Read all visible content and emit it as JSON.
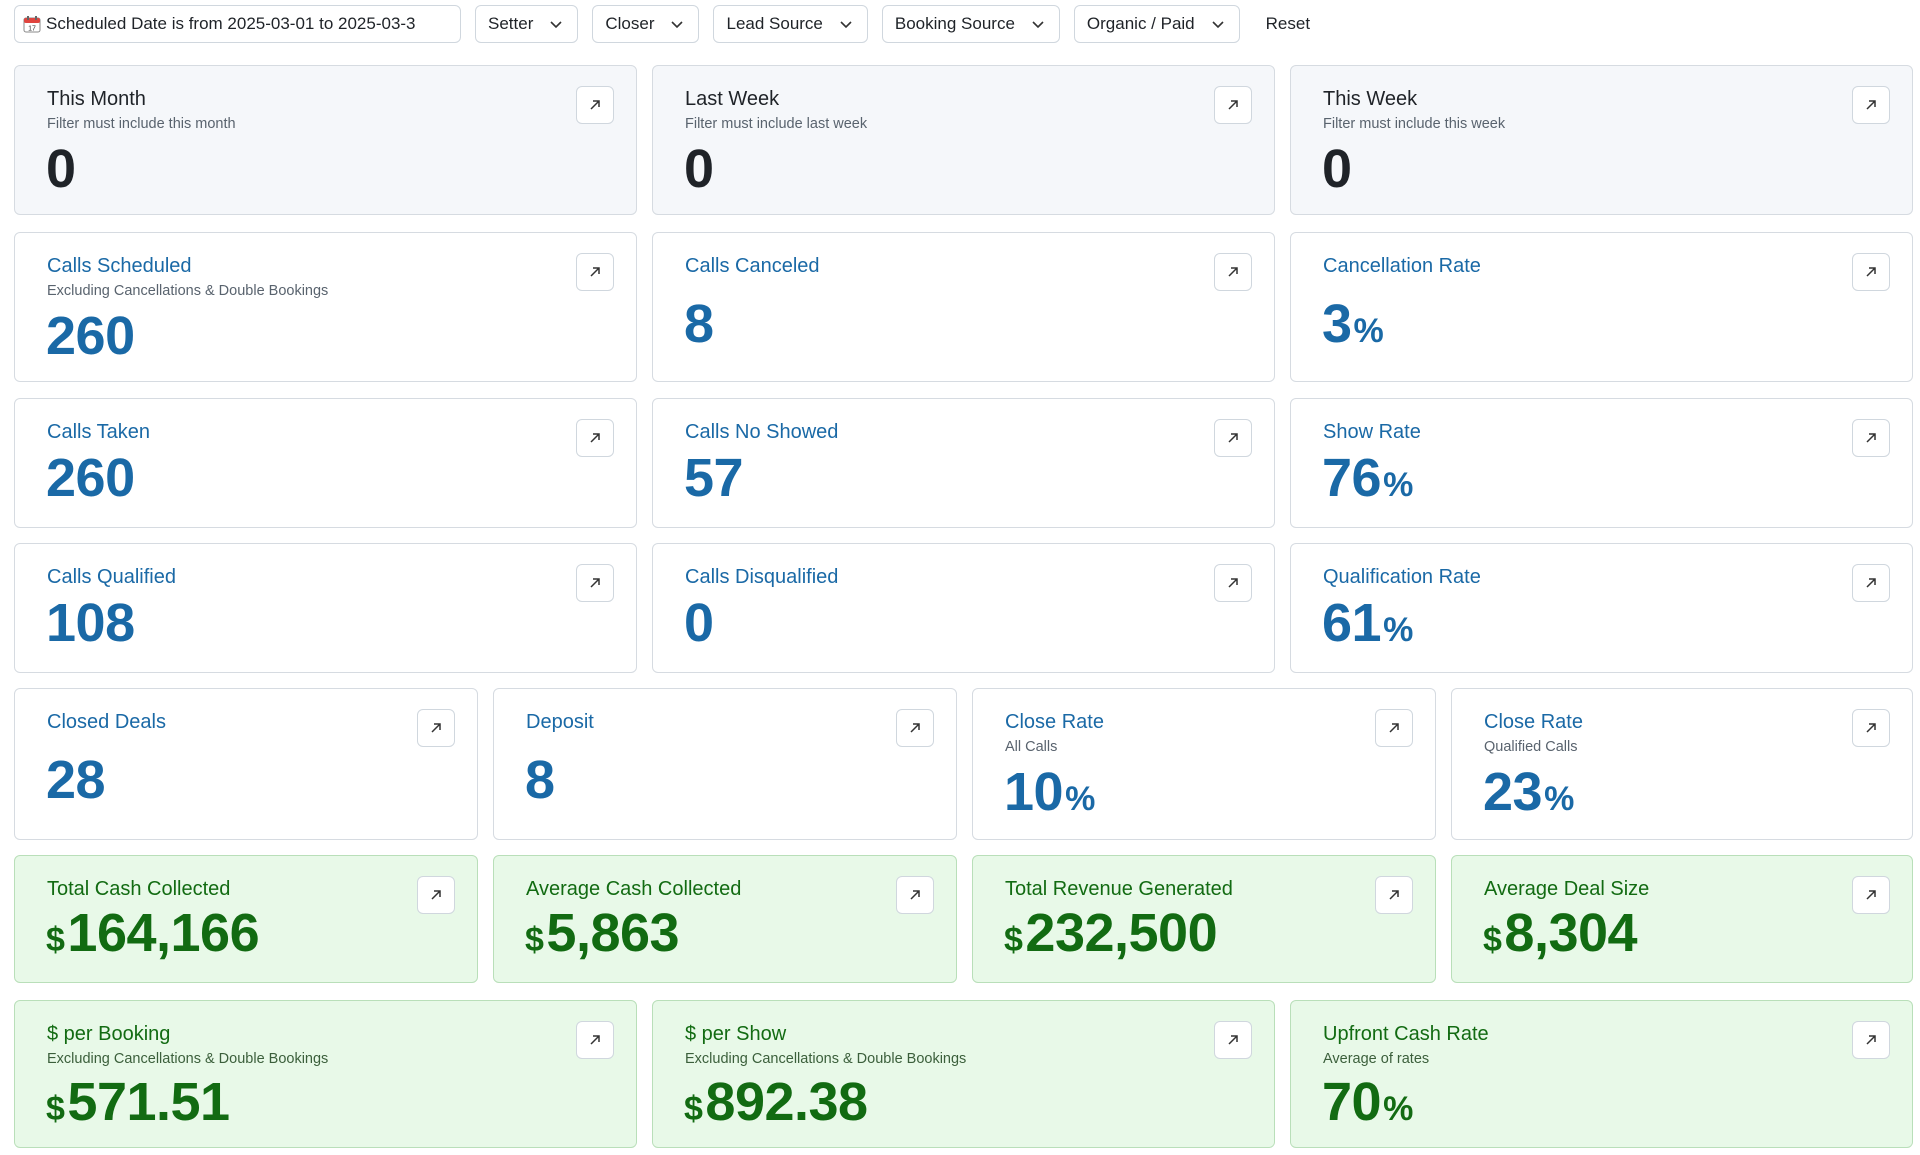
{
  "filters": {
    "date_range": "Scheduled Date is from 2025-03-01 to 2025-03-3",
    "setter": "Setter",
    "closer": "Closer",
    "lead_source": "Lead Source",
    "booking_source": "Booking Source",
    "organic_paid": "Organic / Paid",
    "reset": "Reset"
  },
  "cards": {
    "this_month": {
      "title": "This Month",
      "subtitle": "Filter must include this month",
      "value": "0"
    },
    "last_week": {
      "title": "Last Week",
      "subtitle": "Filter must include last week",
      "value": "0"
    },
    "this_week": {
      "title": "This Week",
      "subtitle": "Filter must include this week",
      "value": "0"
    },
    "calls_scheduled": {
      "title": "Calls Scheduled",
      "subtitle": "Excluding Cancellations & Double Bookings",
      "value": "260"
    },
    "calls_canceled": {
      "title": "Calls Canceled",
      "value": "8"
    },
    "cancellation_rate": {
      "title": "Cancellation Rate",
      "value": "3",
      "unit": "%"
    },
    "calls_taken": {
      "title": "Calls Taken",
      "value": "260"
    },
    "calls_no_showed": {
      "title": "Calls No Showed",
      "value": "57"
    },
    "show_rate": {
      "title": "Show Rate",
      "value": "76",
      "unit": "%"
    },
    "calls_qualified": {
      "title": "Calls Qualified",
      "value": "108"
    },
    "calls_disqualified": {
      "title": "Calls Disqualified",
      "value": "0"
    },
    "qualification_rate": {
      "title": "Qualification Rate",
      "value": "61",
      "unit": "%"
    },
    "closed_deals": {
      "title": "Closed Deals",
      "value": "28"
    },
    "deposit": {
      "title": "Deposit",
      "value": "8"
    },
    "close_rate_all": {
      "title": "Close Rate",
      "subtitle": "All Calls",
      "value": "10",
      "unit": "%"
    },
    "close_rate_qualified": {
      "title": "Close Rate",
      "subtitle": "Qualified Calls",
      "value": "23",
      "unit": "%"
    },
    "total_cash_collected": {
      "title": "Total Cash Collected",
      "currency": "$",
      "value": "164,166"
    },
    "average_cash_collected": {
      "title": "Average Cash Collected",
      "currency": "$",
      "value": "5,863"
    },
    "total_revenue_generated": {
      "title": "Total Revenue Generated",
      "currency": "$",
      "value": "232,500"
    },
    "average_deal_size": {
      "title": "Average Deal Size",
      "currency": "$",
      "value": "8,304"
    },
    "per_booking": {
      "title": "$ per Booking",
      "subtitle": "Excluding Cancellations & Double Bookings",
      "currency": "$",
      "value": "571.51"
    },
    "per_show": {
      "title": "$ per Show",
      "subtitle": "Excluding Cancellations & Double Bookings",
      "currency": "$",
      "value": "892.38"
    },
    "upfront_cash_rate": {
      "title": "Upfront Cash Rate",
      "subtitle": "Average of rates",
      "value": "70",
      "unit": "%"
    }
  },
  "icons": {
    "calendar": "calendar-icon",
    "dropdown": "chevron-down-icon",
    "open": "arrow-up-right-icon"
  },
  "colors": {
    "metric_blue": "#1a69a6",
    "money_green": "#126b12",
    "green_card_bg": "#e8f9e8",
    "gray_card_bg": "#f5f7fa"
  }
}
